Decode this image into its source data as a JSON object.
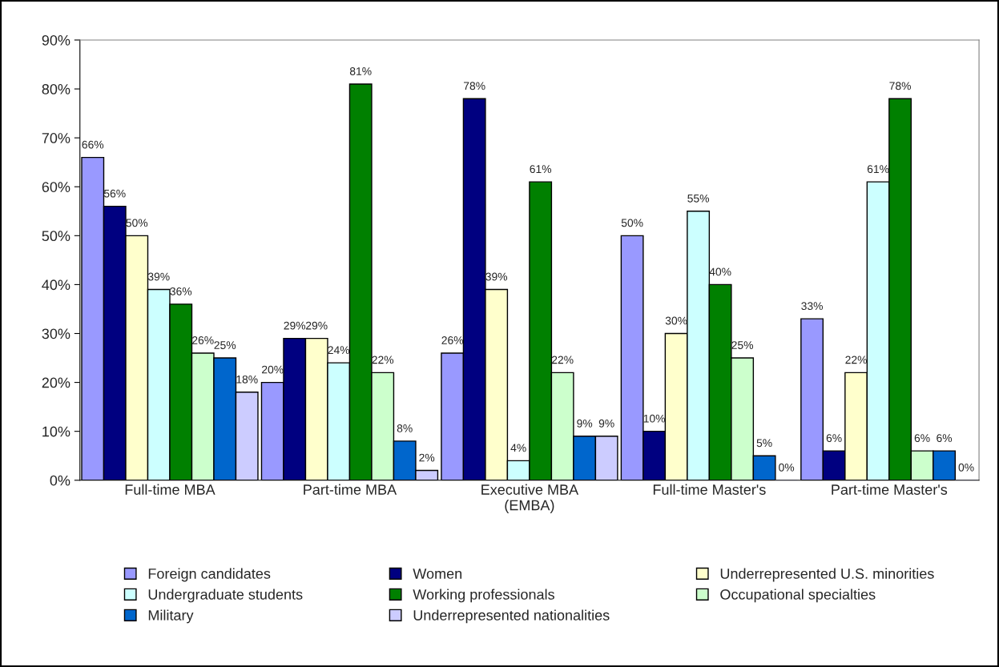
{
  "chart_data": {
    "type": "bar",
    "categories": [
      "Full-time MBA",
      "Part-time MBA",
      "Executive MBA\n(EMBA)",
      "Full-time Master's",
      "Part-time Master's"
    ],
    "series": [
      {
        "name": "Foreign candidates",
        "color": "#9999ff",
        "values": [
          66,
          20,
          26,
          50,
          33
        ],
        "value_labels": [
          "66%",
          "20%",
          "26%",
          "50%",
          "33%"
        ]
      },
      {
        "name": "Women",
        "color": "#000080",
        "values": [
          56,
          29,
          78,
          10,
          6
        ],
        "value_labels": [
          "56%",
          "29%",
          "78%",
          "10%",
          "6%"
        ]
      },
      {
        "name": "Underrepresented U.S. minorities",
        "color": "#ffffcc",
        "values": [
          50,
          29,
          39,
          30,
          22
        ],
        "value_labels": [
          "50%",
          "29%",
          "39%",
          "30%",
          "22%"
        ]
      },
      {
        "name": "Undergraduate students",
        "color": "#ccffff",
        "values": [
          39,
          24,
          4,
          55,
          61
        ],
        "value_labels": [
          "39%",
          "24%",
          "4%",
          "55%",
          "61%"
        ]
      },
      {
        "name": "Working professionals",
        "color": "#008000",
        "values": [
          36,
          81,
          61,
          40,
          78
        ],
        "value_labels": [
          "36%",
          "81%",
          "61%",
          "40%",
          "78%"
        ]
      },
      {
        "name": "Occupational specialties",
        "color": "#ccffcc",
        "values": [
          26,
          22,
          22,
          25,
          6
        ],
        "value_labels": [
          "26%",
          "22%",
          "22%",
          "25%",
          "6%"
        ]
      },
      {
        "name": "Military",
        "color": "#0066cc",
        "values": [
          25,
          8,
          9,
          5,
          6
        ],
        "value_labels": [
          "25%",
          "8%",
          "9%",
          "5%",
          "6%"
        ]
      },
      {
        "name": "Underrepresented nationalities",
        "color": "#ccccff",
        "values": [
          18,
          2,
          9,
          0,
          0
        ],
        "value_labels": [
          "18%",
          "2%",
          "9%",
          "0%",
          "0%"
        ]
      }
    ],
    "ylim": [
      0,
      90
    ],
    "yticks": [
      {
        "value": 0,
        "label": "0%"
      },
      {
        "value": 10,
        "label": "10%"
      },
      {
        "value": 20,
        "label": "20%"
      },
      {
        "value": 30,
        "label": "30%"
      },
      {
        "value": 40,
        "label": "40%"
      },
      {
        "value": 50,
        "label": "50%"
      },
      {
        "value": 60,
        "label": "60%"
      },
      {
        "value": 70,
        "label": "70%"
      },
      {
        "value": 80,
        "label": "80%"
      },
      {
        "value": 90,
        "label": "90%"
      }
    ],
    "grid": false,
    "legend": "bottom"
  }
}
